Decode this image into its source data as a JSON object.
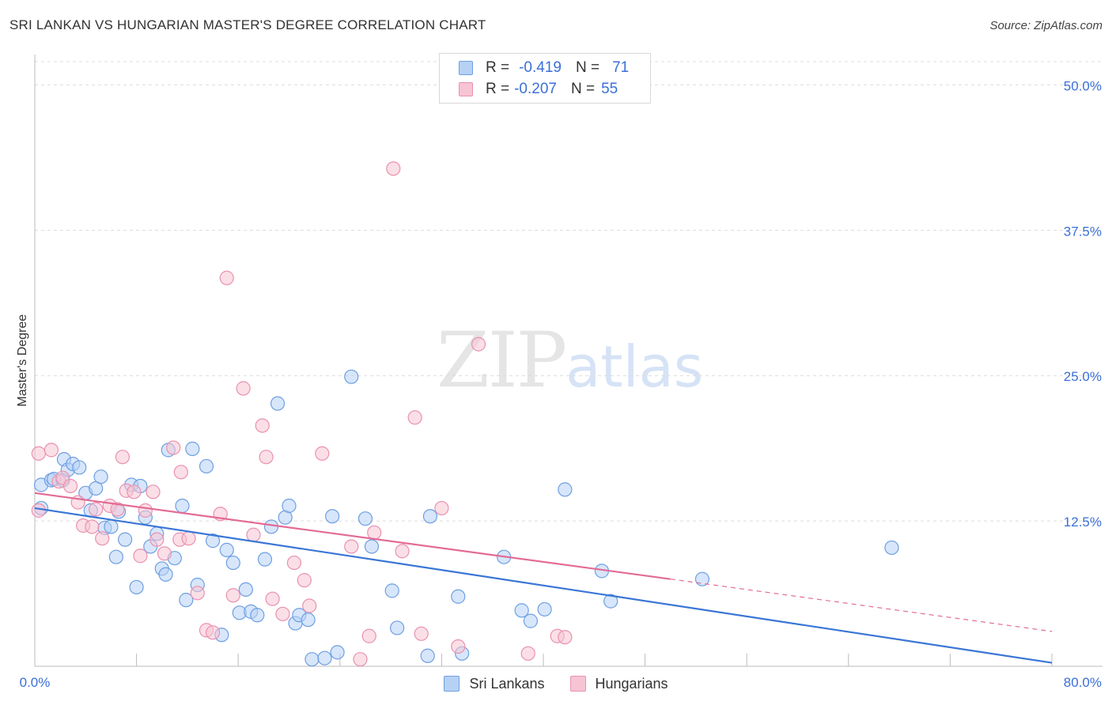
{
  "title": "SRI LANKAN VS HUNGARIAN MASTER'S DEGREE CORRELATION CHART",
  "source": "Source: ZipAtlas.com",
  "watermark": {
    "zip": "ZIP",
    "atlas": "atlas"
  },
  "colors": {
    "blue_fill": "#b7d1f5",
    "blue_stroke": "#6e9fe2",
    "blue_line": "#3a76d6",
    "pink_fill": "#f7c4d4",
    "pink_stroke": "#e991ae",
    "pink_line": "#e36b95",
    "tick_text": "#3b6fd8",
    "grid": "#dcdcdc"
  },
  "legend_top": [
    {
      "r_label": "R =",
      "r_value": "-0.419",
      "n_label": "N =",
      "n_value": "71"
    },
    {
      "r_label": "R =",
      "r_value": "-0.207",
      "n_label": "N =",
      "n_value": "55"
    }
  ],
  "legend_bottom": [
    "Sri Lankans",
    "Hungarians"
  ],
  "chart_data": {
    "type": "scatter",
    "title": "SRI LANKAN VS HUNGARIAN MASTER'S DEGREE CORRELATION CHART",
    "xlabel": "",
    "ylabel": "Master's Degree",
    "xlim": [
      0,
      80
    ],
    "ylim": [
      0,
      52
    ],
    "x_tick_labels": [
      "0.0%",
      "80.0%"
    ],
    "y_ticks": [
      12.5,
      25.0,
      37.5,
      50.0
    ],
    "y_tick_labels": [
      "12.5%",
      "25.0%",
      "37.5%",
      "50.0%"
    ],
    "grid": true,
    "series": [
      {
        "name": "Sri Lankans",
        "trend": {
          "x": [
            0,
            80
          ],
          "y": [
            13.6,
            0.3
          ]
        },
        "points": [
          [
            0.5,
            15.6
          ],
          [
            0.5,
            13.6
          ],
          [
            1.3,
            16.0
          ],
          [
            1.5,
            16.1
          ],
          [
            2.2,
            16.0
          ],
          [
            2.3,
            17.8
          ],
          [
            2.6,
            16.9
          ],
          [
            3.0,
            17.4
          ],
          [
            3.5,
            17.1
          ],
          [
            4.0,
            14.9
          ],
          [
            4.4,
            13.4
          ],
          [
            4.8,
            15.3
          ],
          [
            5.2,
            16.3
          ],
          [
            5.5,
            11.9
          ],
          [
            6.0,
            12.0
          ],
          [
            6.4,
            9.4
          ],
          [
            6.6,
            13.3
          ],
          [
            7.1,
            10.9
          ],
          [
            7.6,
            15.6
          ],
          [
            8.0,
            6.8
          ],
          [
            8.3,
            15.5
          ],
          [
            8.7,
            12.8
          ],
          [
            9.1,
            10.3
          ],
          [
            9.6,
            11.4
          ],
          [
            10.0,
            8.4
          ],
          [
            10.3,
            7.9
          ],
          [
            10.5,
            18.6
          ],
          [
            11.0,
            9.3
          ],
          [
            11.6,
            13.8
          ],
          [
            11.9,
            5.7
          ],
          [
            12.4,
            18.7
          ],
          [
            12.8,
            7.0
          ],
          [
            13.5,
            17.2
          ],
          [
            14.0,
            10.8
          ],
          [
            14.7,
            2.7
          ],
          [
            15.1,
            10.0
          ],
          [
            15.6,
            8.9
          ],
          [
            16.1,
            4.6
          ],
          [
            16.6,
            6.6
          ],
          [
            17.0,
            4.7
          ],
          [
            17.5,
            4.4
          ],
          [
            18.1,
            9.2
          ],
          [
            18.6,
            12.0
          ],
          [
            19.1,
            22.6
          ],
          [
            19.7,
            12.8
          ],
          [
            20.0,
            13.8
          ],
          [
            20.5,
            3.7
          ],
          [
            20.8,
            4.4
          ],
          [
            21.5,
            4.0
          ],
          [
            21.8,
            0.6
          ],
          [
            22.8,
            0.7
          ],
          [
            23.4,
            12.9
          ],
          [
            23.8,
            1.2
          ],
          [
            24.9,
            24.9
          ],
          [
            26.0,
            12.7
          ],
          [
            26.5,
            10.3
          ],
          [
            28.1,
            6.5
          ],
          [
            28.5,
            3.3
          ],
          [
            30.9,
            0.9
          ],
          [
            31.1,
            12.9
          ],
          [
            33.3,
            6.0
          ],
          [
            33.6,
            1.1
          ],
          [
            36.9,
            9.4
          ],
          [
            38.3,
            4.8
          ],
          [
            39.0,
            3.9
          ],
          [
            40.1,
            4.9
          ],
          [
            41.7,
            15.2
          ],
          [
            44.6,
            8.2
          ],
          [
            45.3,
            5.6
          ],
          [
            52.5,
            7.5
          ],
          [
            67.4,
            10.2
          ]
        ]
      },
      {
        "name": "Hungarians",
        "trend": {
          "x": [
            0,
            50
          ],
          "y": [
            14.9,
            7.5
          ]
        },
        "trend_dashed": {
          "x": [
            50,
            80
          ],
          "y": [
            7.5,
            3.0
          ]
        },
        "points": [
          [
            0.3,
            18.3
          ],
          [
            0.3,
            13.4
          ],
          [
            1.3,
            18.6
          ],
          [
            1.9,
            15.9
          ],
          [
            2.2,
            16.2
          ],
          [
            2.8,
            15.5
          ],
          [
            3.4,
            14.1
          ],
          [
            3.8,
            12.1
          ],
          [
            4.5,
            12.0
          ],
          [
            4.8,
            13.5
          ],
          [
            5.3,
            11.0
          ],
          [
            5.9,
            13.8
          ],
          [
            6.5,
            13.5
          ],
          [
            6.9,
            18.0
          ],
          [
            7.2,
            15.1
          ],
          [
            7.8,
            15.0
          ],
          [
            8.3,
            9.5
          ],
          [
            8.7,
            13.4
          ],
          [
            9.3,
            15.0
          ],
          [
            9.6,
            10.9
          ],
          [
            10.2,
            9.7
          ],
          [
            10.9,
            18.8
          ],
          [
            11.4,
            10.9
          ],
          [
            11.5,
            16.7
          ],
          [
            12.1,
            11.0
          ],
          [
            12.8,
            6.3
          ],
          [
            13.5,
            3.1
          ],
          [
            14.0,
            2.9
          ],
          [
            14.6,
            13.1
          ],
          [
            15.1,
            33.4
          ],
          [
            15.6,
            6.1
          ],
          [
            16.4,
            23.9
          ],
          [
            17.2,
            11.3
          ],
          [
            17.9,
            20.7
          ],
          [
            18.2,
            18.0
          ],
          [
            18.7,
            5.8
          ],
          [
            19.5,
            4.5
          ],
          [
            20.4,
            8.9
          ],
          [
            21.2,
            7.4
          ],
          [
            21.6,
            5.2
          ],
          [
            22.6,
            18.3
          ],
          [
            24.9,
            10.3
          ],
          [
            25.6,
            0.6
          ],
          [
            26.3,
            2.6
          ],
          [
            26.7,
            11.5
          ],
          [
            28.2,
            42.8
          ],
          [
            28.9,
            9.9
          ],
          [
            29.9,
            21.4
          ],
          [
            30.4,
            2.8
          ],
          [
            32.0,
            13.6
          ],
          [
            33.3,
            1.7
          ],
          [
            34.9,
            27.7
          ],
          [
            38.8,
            1.1
          ],
          [
            41.1,
            2.6
          ],
          [
            41.7,
            2.5
          ]
        ]
      }
    ]
  }
}
